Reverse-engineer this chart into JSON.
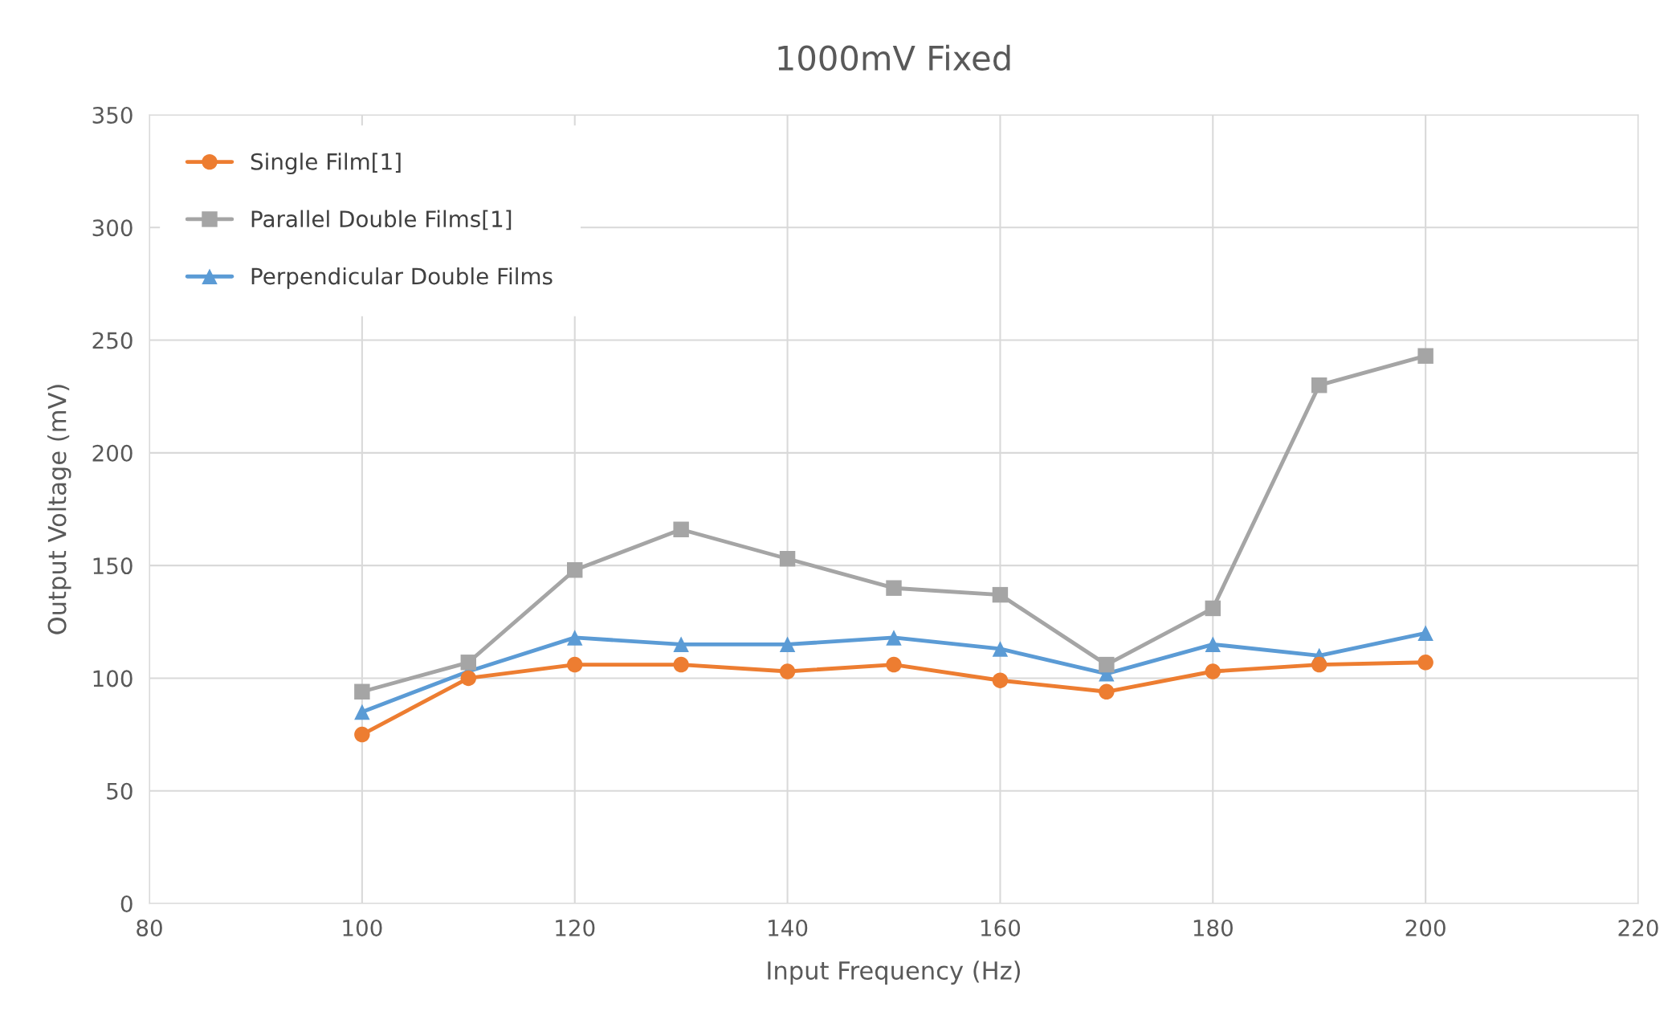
{
  "chart_data": {
    "type": "line",
    "title": "1000mV Fixed",
    "xlabel": "Input Frequency (Hz)",
    "ylabel": "Output Voltage (mV)",
    "x": [
      100,
      110,
      120,
      130,
      140,
      150,
      160,
      170,
      180,
      190,
      200
    ],
    "series": [
      {
        "name": "Single Film[1]",
        "color": "#ed7d31",
        "marker": "circle",
        "values": [
          75,
          100,
          106,
          106,
          103,
          106,
          99,
          94,
          103,
          106,
          107
        ]
      },
      {
        "name": "Parallel Double Films[1]",
        "color": "#a5a5a5",
        "marker": "square",
        "values": [
          94,
          107,
          148,
          166,
          153,
          140,
          137,
          106,
          131,
          230,
          243
        ]
      },
      {
        "name": "Perpendicular Double Films",
        "color": "#5b9bd5",
        "marker": "triangle",
        "values": [
          85,
          103,
          118,
          115,
          115,
          118,
          113,
          102,
          115,
          110,
          120
        ]
      }
    ],
    "xlim": [
      80,
      220
    ],
    "xticks": [
      80,
      100,
      120,
      140,
      160,
      180,
      200,
      220
    ],
    "ylim": [
      0,
      350
    ],
    "yticks": [
      0,
      50,
      100,
      150,
      200,
      250,
      300,
      350
    ],
    "grid": true,
    "legend": "top left"
  }
}
